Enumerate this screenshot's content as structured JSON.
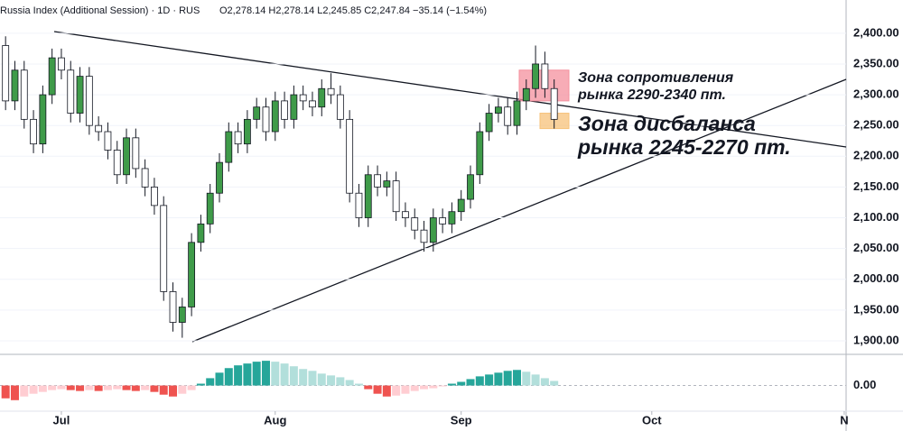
{
  "chart_data": [
    {
      "type": "candlestick",
      "title": "Russia Index (Additional Session) · 1D · RUS",
      "ohlc_legend": "O2,278.14 H2,278.14 L2,245.85 C2,247.84 −35.14 (−1.54%)",
      "x": [
        -6,
        -5,
        -4,
        -3,
        -2,
        -1,
        0,
        1,
        2,
        3,
        4,
        5,
        6,
        7,
        8,
        9,
        10,
        11,
        12,
        13,
        14,
        15,
        16,
        17,
        18,
        19,
        20,
        21,
        22,
        23,
        24,
        25,
        26,
        27,
        28,
        29,
        30,
        31,
        32,
        33,
        34,
        35,
        36,
        37,
        38,
        39,
        40,
        41,
        42,
        43,
        44,
        45,
        46,
        47,
        48,
        49,
        50,
        51,
        52,
        53
      ],
      "open": [
        2380,
        2290,
        2340,
        2260,
        2220,
        2300,
        2360,
        2340,
        2270,
        2330,
        2250,
        2240,
        2210,
        2170,
        2230,
        2180,
        2150,
        2120,
        1980,
        1930,
        1955,
        2060,
        2090,
        2140,
        2190,
        2240,
        2220,
        2260,
        2280,
        2240,
        2290,
        2260,
        2300,
        2290,
        2280,
        2310,
        2300,
        2260,
        2140,
        2100,
        2170,
        2150,
        2160,
        2110,
        2100,
        2080,
        2060,
        2100,
        2090,
        2110,
        2130,
        2170,
        2240,
        2270,
        2280,
        2250,
        2290,
        2310,
        2350,
        2310
      ],
      "high": [
        2395,
        2355,
        2355,
        2275,
        2315,
        2375,
        2375,
        2355,
        2345,
        2345,
        2265,
        2255,
        2225,
        2245,
        2245,
        2195,
        2165,
        2135,
        1995,
        1970,
        2075,
        2105,
        2155,
        2205,
        2255,
        2255,
        2275,
        2295,
        2295,
        2305,
        2305,
        2315,
        2315,
        2305,
        2325,
        2335,
        2315,
        2275,
        2155,
        2185,
        2185,
        2175,
        2175,
        2125,
        2115,
        2095,
        2115,
        2115,
        2125,
        2145,
        2185,
        2255,
        2285,
        2295,
        2295,
        2305,
        2325,
        2380,
        2370,
        2325
      ],
      "low": [
        2275,
        2275,
        2245,
        2205,
        2205,
        2285,
        2325,
        2255,
        2255,
        2235,
        2225,
        2195,
        2155,
        2155,
        2165,
        2135,
        2105,
        1965,
        1915,
        1905,
        1940,
        2045,
        2075,
        2125,
        2175,
        2205,
        2205,
        2245,
        2225,
        2225,
        2245,
        2245,
        2275,
        2265,
        2265,
        2285,
        2245,
        2125,
        2085,
        2085,
        2135,
        2135,
        2095,
        2085,
        2065,
        2045,
        2045,
        2075,
        2075,
        2095,
        2115,
        2155,
        2225,
        2255,
        2235,
        2235,
        2275,
        2295,
        2295,
        2245
      ],
      "close": [
        2290,
        2340,
        2260,
        2220,
        2300,
        2360,
        2340,
        2270,
        2330,
        2250,
        2240,
        2210,
        2170,
        2230,
        2180,
        2150,
        2120,
        1980,
        1930,
        1955,
        2060,
        2090,
        2140,
        2190,
        2240,
        2220,
        2260,
        2280,
        2240,
        2290,
        2260,
        2300,
        2290,
        2280,
        2310,
        2300,
        2260,
        2140,
        2100,
        2170,
        2150,
        2160,
        2110,
        2100,
        2080,
        2060,
        2100,
        2090,
        2110,
        2130,
        2170,
        2240,
        2270,
        2280,
        2250,
        2290,
        2310,
        2350,
        2310,
        2260
      ],
      "up_color": "#3f9b49",
      "down_color": "#ffffff",
      "ylim": [
        1878,
        2454
      ],
      "yticks": [
        {
          "value": 1900,
          "label": "1,900.00"
        },
        {
          "value": 1950,
          "label": "1,950.00"
        },
        {
          "value": 2000,
          "label": "2,000.00"
        },
        {
          "value": 2050,
          "label": "2,050.00"
        },
        {
          "value": 2100,
          "label": "2,100.00"
        },
        {
          "value": 2150,
          "label": "2,150.00"
        },
        {
          "value": 2200,
          "label": "2,200.00"
        },
        {
          "value": 2250,
          "label": "2,250.00"
        },
        {
          "value": 2300,
          "label": "2,300.00"
        },
        {
          "value": 2350,
          "label": "2,350.00"
        },
        {
          "value": 2400,
          "label": "2,400.00"
        }
      ],
      "xlim": [
        -6.6,
        84.4
      ],
      "xticks": [
        {
          "value": 0,
          "label": "Jul"
        },
        {
          "value": 23,
          "label": "Aug"
        },
        {
          "value": 43,
          "label": "Sep"
        },
        {
          "value": 63.5,
          "label": "Oct"
        },
        {
          "value": 84.2,
          "label": "N"
        }
      ],
      "zones": [
        {
          "lines": [
            "Зона сопротивления",
            "рынка 2290-2340 пт."
          ],
          "low": 2290,
          "high": 2340,
          "color": "#f4909e"
        },
        {
          "lines": [
            "Зона дисбаланса",
            "рынка 2245-2270 пт."
          ],
          "low": 2245,
          "high": 2270,
          "color": "#f7c27a"
        }
      ]
    },
    {
      "type": "bar",
      "x": [
        -6,
        -5,
        -4,
        -3,
        -2,
        -1,
        0,
        1,
        2,
        3,
        4,
        5,
        6,
        7,
        8,
        9,
        10,
        11,
        12,
        13,
        14,
        15,
        16,
        17,
        18,
        19,
        20,
        21,
        22,
        23,
        24,
        25,
        26,
        27,
        28,
        29,
        30,
        31,
        32,
        33,
        34,
        35,
        36,
        37,
        38,
        39,
        40,
        41,
        42,
        43,
        44,
        45,
        46,
        47,
        48,
        49,
        50,
        51,
        52,
        53
      ],
      "values": [
        -14,
        -16,
        -12,
        -9,
        -7,
        -5,
        -4,
        -5,
        -6,
        -5,
        -6,
        -5,
        -4,
        -5,
        -6,
        -5,
        -7,
        -10,
        -12,
        -9,
        -5,
        2,
        8,
        14,
        19,
        22,
        24,
        26,
        27,
        26,
        24,
        21,
        18,
        16,
        13,
        11,
        9,
        6,
        2,
        -4,
        -9,
        -12,
        -11,
        -9,
        -6,
        -4,
        -3,
        -1,
        2,
        4,
        7,
        10,
        12,
        14,
        16,
        17,
        15,
        12,
        8,
        5
      ],
      "ylim": [
        -28,
        34
      ],
      "yticks": [
        {
          "value": 0,
          "label": "0.00"
        }
      ]
    }
  ]
}
